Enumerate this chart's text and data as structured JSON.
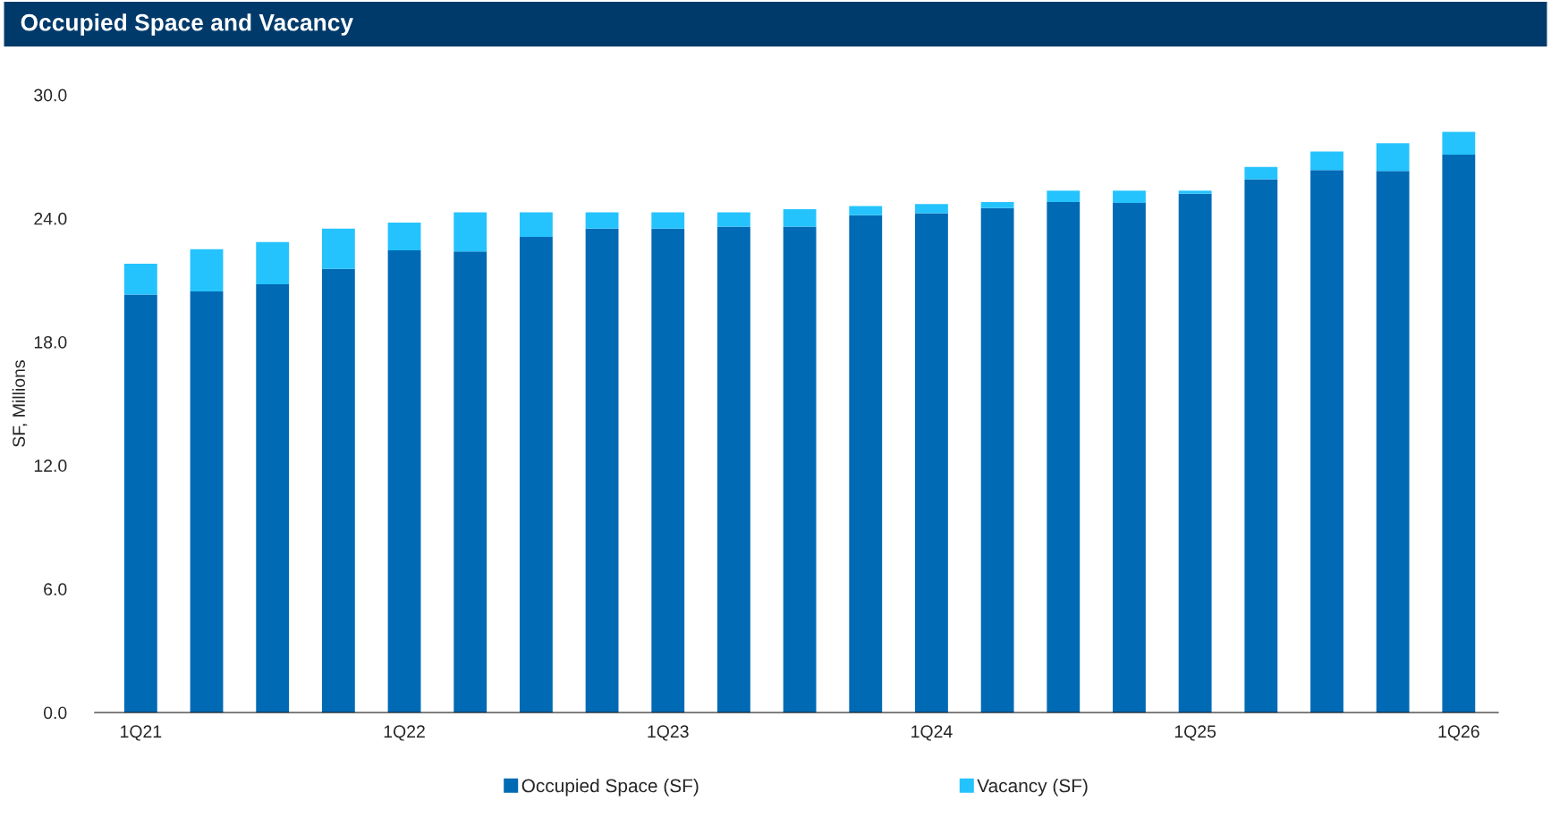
{
  "chart_data": {
    "type": "bar",
    "title": "Occupied Space and Vacancy",
    "ylabel": "SF, Millions",
    "stacked": true,
    "categories": [
      "1Q21",
      null,
      null,
      null,
      "1Q22",
      null,
      null,
      null,
      "1Q23",
      null,
      null,
      null,
      "1Q24",
      null,
      null,
      null,
      "1Q25",
      null,
      null,
      null,
      "1Q26"
    ],
    "series": [
      {
        "name": "Occupied Space (SF)",
        "color": "#006ab5",
        "values": [
          20.3,
          20.45,
          20.8,
          21.55,
          22.45,
          22.4,
          23.1,
          23.5,
          23.5,
          23.6,
          23.6,
          24.15,
          24.25,
          24.5,
          24.8,
          24.75,
          25.2,
          25.9,
          26.35,
          26.3,
          27.1
        ]
      },
      {
        "name": "Vacancy (SF)",
        "color": "#24c3fd",
        "values": [
          1.5,
          2.05,
          2.05,
          1.95,
          1.35,
          1.9,
          1.2,
          0.8,
          0.8,
          0.7,
          0.85,
          0.45,
          0.45,
          0.3,
          0.55,
          0.6,
          0.15,
          0.6,
          0.9,
          1.35,
          1.1
        ]
      }
    ],
    "ylim": [
      0,
      30
    ],
    "yticks": [
      {
        "value": 0,
        "label": "0.0"
      },
      {
        "value": 6,
        "label": "6.0"
      },
      {
        "value": 12,
        "label": "12.0"
      },
      {
        "value": 18,
        "label": "18.0"
      },
      {
        "value": 24,
        "label": "24.0"
      },
      {
        "value": 30,
        "label": "30.0"
      }
    ],
    "grid": false,
    "legend": "bottom"
  }
}
